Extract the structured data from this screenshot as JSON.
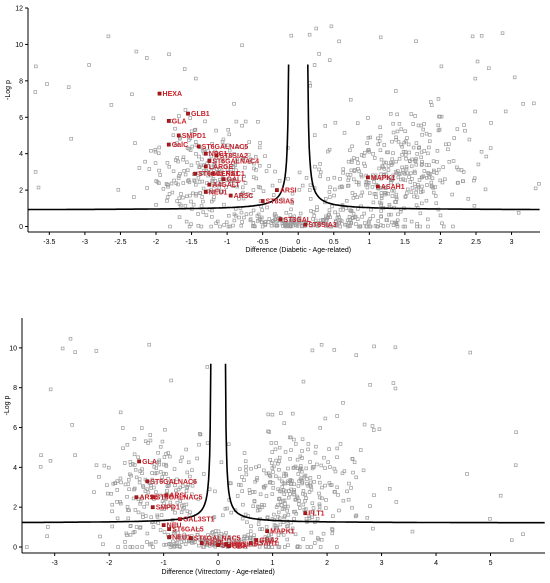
{
  "chart_data": [
    {
      "type": "scatter",
      "title": "",
      "xlabel": "Difference (Diabetic - Age-related)",
      "ylabel": "-Log p",
      "xlim": [
        -3.8,
        3.4
      ],
      "ylim": [
        -0.3,
        12
      ],
      "x_ticks": [
        "-3.5",
        "-3",
        "-2.5",
        "-2",
        "-1.5",
        "-1",
        "-0.5",
        "0",
        "0.5",
        "1",
        "1.5",
        "2",
        "2.5",
        "3"
      ],
      "x_tick_values": [
        -3.5,
        -3,
        -2.5,
        -2,
        -1.5,
        -1,
        -0.5,
        0,
        0.5,
        1,
        1.5,
        2,
        2.5,
        3
      ],
      "y_ticks": [
        "0",
        "2",
        "4",
        "6",
        "8",
        "10",
        "12"
      ],
      "y_tick_values": [
        0,
        2,
        4,
        6,
        8,
        10,
        12
      ],
      "threshold": {
        "s0": 0.12,
        "c": 0.9,
        "scale": 0.12
      },
      "background_points": {
        "count": 900,
        "seed": 11
      },
      "highlighted": [
        {
          "name": "HEXA",
          "x": -1.95,
          "y": 7.3
        },
        {
          "name": "GLB1",
          "x": -1.55,
          "y": 6.2
        },
        {
          "name": "GLA",
          "x": -1.82,
          "y": 5.8
        },
        {
          "name": "SMPD1",
          "x": -1.68,
          "y": 5.0
        },
        {
          "name": "GalC",
          "x": -1.82,
          "y": 4.5
        },
        {
          "name": "ST6GALNAC5",
          "x": -1.4,
          "y": 4.4
        },
        {
          "name": "NPC1",
          "x": -1.3,
          "y": 4.0
        },
        {
          "name": "ST8SIA2",
          "x": -1.15,
          "y": 3.9
        },
        {
          "name": "ST6GALNAC4",
          "x": -1.25,
          "y": 3.6
        },
        {
          "name": "LARGE",
          "x": -1.3,
          "y": 3.3
        },
        {
          "name": "CERS1",
          "x": -1.2,
          "y": 2.9
        },
        {
          "name": "ST6GALNAC1",
          "x": -1.45,
          "y": 2.9
        },
        {
          "name": "GALL",
          "x": -1.05,
          "y": 2.6
        },
        {
          "name": "A4GALT",
          "x": -1.25,
          "y": 2.3
        },
        {
          "name": "NEU1",
          "x": -1.3,
          "y": 1.9
        },
        {
          "name": "ARSC",
          "x": -0.95,
          "y": 1.7
        },
        {
          "name": "ARSI",
          "x": -0.3,
          "y": 2.0
        },
        {
          "name": "ST8SIA5",
          "x": -0.5,
          "y": 1.4
        },
        {
          "name": "ST3GAL",
          "x": -0.25,
          "y": 0.4
        },
        {
          "name": "ST8SIA3",
          "x": 0.1,
          "y": 0.1
        },
        {
          "name": "MAPK1",
          "x": 0.98,
          "y": 2.7
        },
        {
          "name": "ASAH1",
          "x": 1.12,
          "y": 2.2
        }
      ]
    },
    {
      "type": "scatter",
      "title": "",
      "xlabel": "Difference (Vitrectomy - Age-related)",
      "ylabel": "-Log p",
      "xlim": [
        -3.6,
        6.0
      ],
      "ylim": [
        -0.3,
        11.5
      ],
      "x_ticks": [
        "-3",
        "-2",
        "-1",
        "0",
        "1",
        "2",
        "3",
        "4",
        "5"
      ],
      "x_tick_values": [
        -3,
        -2,
        -1,
        0,
        1,
        2,
        3,
        4,
        5
      ],
      "y_ticks": [
        "0",
        "2",
        "4",
        "6",
        "8",
        "10"
      ],
      "y_tick_values": [
        0,
        2,
        4,
        6,
        8,
        10
      ],
      "threshold": {
        "s0": 0.12,
        "c": 1.2,
        "scale": 0.12
      },
      "background_points": {
        "count": 750,
        "seed": 29
      },
      "highlighted": [
        {
          "name": "GLA",
          "x": -1.45,
          "y": 4.3
        },
        {
          "name": "ST6GALNAC6",
          "x": -1.3,
          "y": 3.3
        },
        {
          "name": "ARSI",
          "x": -0.95,
          "y": 2.6
        },
        {
          "name": "ST6GALNAC5",
          "x": -1.2,
          "y": 2.5
        },
        {
          "name": "ARSE",
          "x": -1.5,
          "y": 2.5
        },
        {
          "name": "SMPD1",
          "x": -1.2,
          "y": 2.0
        },
        {
          "name": "GAL3ST1",
          "x": -0.7,
          "y": 1.4
        },
        {
          "name": "NEU",
          "x": -1.0,
          "y": 1.1
        },
        {
          "name": "ST6GAL5",
          "x": -0.9,
          "y": 0.9
        },
        {
          "name": "NEU1",
          "x": -0.9,
          "y": 0.5
        },
        {
          "name": "ST6GALNAC5",
          "x": -0.5,
          "y": 0.45
        },
        {
          "name": "ARSF",
          "x": -0.3,
          "y": 0.2
        },
        {
          "name": "SMPD3",
          "x": 0.0,
          "y": 0.1
        },
        {
          "name": "GBA",
          "x": 0.2,
          "y": 0.05
        },
        {
          "name": "ASAH1",
          "x": 0.6,
          "y": 0.2
        },
        {
          "name": "GBA2",
          "x": 0.7,
          "y": 0.35
        },
        {
          "name": "MAPK1",
          "x": 0.9,
          "y": 0.8
        },
        {
          "name": "FLT1",
          "x": 1.6,
          "y": 1.7
        },
        {
          "name": "ST8SIA5",
          "x": 0.15,
          "y": 0.15
        }
      ]
    }
  ]
}
